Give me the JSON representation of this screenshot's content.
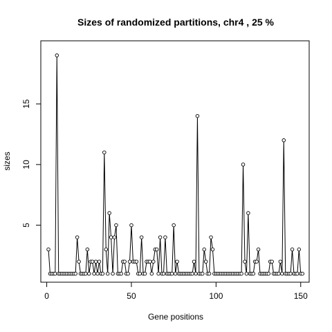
{
  "chart_data": {
    "type": "line",
    "title": "Sizes of randomized partitions, chr4 , 25 %",
    "xlabel": "Gene positions",
    "ylabel": "sizes",
    "xlim": [
      -3.5,
      155
    ],
    "ylim": [
      0.3,
      20.2
    ],
    "xticks": [
      0,
      50,
      100,
      150
    ],
    "yticks": [
      5,
      10,
      15
    ],
    "grid": false,
    "legend": "none",
    "markers": "open-circle",
    "x": [
      1,
      2,
      3,
      4,
      5,
      6,
      7,
      8,
      9,
      10,
      11,
      12,
      13,
      14,
      15,
      16,
      17,
      18,
      19,
      20,
      21,
      22,
      23,
      24,
      25,
      26,
      27,
      28,
      29,
      30,
      31,
      32,
      33,
      34,
      35,
      36,
      37,
      38,
      39,
      40,
      41,
      42,
      43,
      44,
      45,
      46,
      47,
      48,
      49,
      50,
      51,
      52,
      53,
      54,
      55,
      56,
      57,
      58,
      59,
      60,
      61,
      62,
      63,
      64,
      65,
      66,
      67,
      68,
      69,
      70,
      71,
      72,
      73,
      74,
      75,
      76,
      77,
      78,
      79,
      80,
      81,
      82,
      83,
      84,
      85,
      86,
      87,
      88,
      89,
      90,
      91,
      92,
      93,
      94,
      95,
      96,
      97,
      98,
      99,
      100,
      101,
      102,
      103,
      104,
      105,
      106,
      107,
      108,
      109,
      110,
      111,
      112,
      113,
      114,
      115,
      116,
      117,
      118,
      119,
      120,
      121,
      122,
      123,
      124,
      125,
      126,
      127,
      128,
      129,
      130,
      131,
      132,
      133,
      134,
      135,
      136,
      137,
      138,
      139,
      140,
      141,
      142,
      143,
      144,
      145,
      146,
      147,
      148,
      149,
      150,
      151
    ],
    "values": [
      3,
      1,
      1,
      1,
      1,
      19,
      1,
      1,
      1,
      1,
      1,
      1,
      1,
      1,
      1,
      1,
      1,
      4,
      2,
      1,
      1,
      1,
      1,
      3,
      1,
      2,
      2,
      1,
      2,
      1,
      2,
      1,
      1,
      11,
      3,
      1,
      6,
      4,
      1,
      4,
      5,
      1,
      1,
      1,
      2,
      2,
      1,
      1,
      2,
      5,
      2,
      2,
      2,
      1,
      1,
      4,
      1,
      1,
      2,
      2,
      2,
      1,
      2,
      3,
      3,
      1,
      4,
      1,
      1,
      4,
      1,
      1,
      1,
      1,
      5,
      1,
      2,
      1,
      1,
      1,
      1,
      1,
      1,
      1,
      1,
      1,
      2,
      1,
      14,
      1,
      1,
      1,
      3,
      2,
      1,
      1,
      4,
      3,
      1,
      1,
      1,
      1,
      1,
      1,
      1,
      1,
      1,
      1,
      1,
      1,
      1,
      1,
      1,
      1,
      1,
      10,
      2,
      1,
      6,
      1,
      1,
      1,
      2,
      2,
      3,
      1,
      1,
      1,
      1,
      1,
      1,
      2,
      2,
      1,
      1,
      1,
      1,
      2,
      1,
      12,
      1,
      1,
      1,
      1,
      3,
      1,
      1,
      1,
      3,
      1,
      1
    ]
  }
}
